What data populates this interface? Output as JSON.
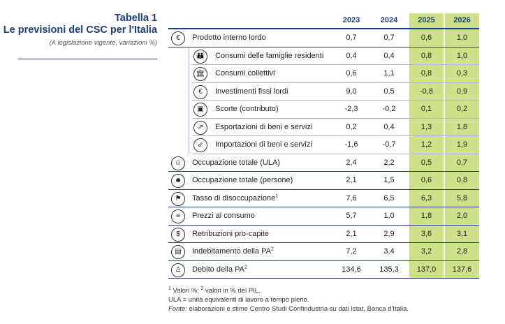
{
  "caption": {
    "title": "Tabella 1",
    "subtitle": "Le previsioni del CSC per l'Italia",
    "note": "(A legislazione vigente, variazioni %)"
  },
  "columns": [
    "2023",
    "2024",
    "2025",
    "2026"
  ],
  "colors": {
    "accent": "#1a3d7c",
    "forecast": "#cfe08a"
  },
  "rows": [
    {
      "label": "Prodotto interno lordo",
      "sup": "",
      "icon": "euro-coin-icon",
      "glyph": "€",
      "values": [
        "0,7",
        "0,7",
        "0,6",
        "1,0"
      ]
    },
    {
      "label": "Consumi delle famiglie residenti",
      "sup": "",
      "icon": "family-icon",
      "glyph": "👪",
      "values": [
        "0,4",
        "0,4",
        "0,8",
        "1,0"
      ]
    },
    {
      "label": "Consumi collettivi",
      "sup": "",
      "icon": "public-building-icon",
      "glyph": "🏛",
      "values": [
        "0,6",
        "1,1",
        "0,8",
        "0,3"
      ]
    },
    {
      "label": "Investimenti fissi lordi",
      "sup": "",
      "icon": "investment-icon",
      "glyph": "€",
      "values": [
        "9,0",
        "0,5",
        "-0,8",
        "0,9"
      ]
    },
    {
      "label": "Scorte (contributo)",
      "sup": "",
      "icon": "stock-box-icon",
      "glyph": "▣",
      "values": [
        "-2,3",
        "-0,2",
        "0,1",
        "0,2"
      ]
    },
    {
      "label": "Esportazioni di beni e servizi",
      "sup": "",
      "icon": "export-icon",
      "glyph": "⇗",
      "values": [
        "0,2",
        "0,4",
        "1,3",
        "1,8"
      ]
    },
    {
      "label": "Importazioni di beni e servizi",
      "sup": "",
      "icon": "import-icon",
      "glyph": "⇙",
      "values": [
        "-1,6",
        "-0,7",
        "1,2",
        "1,9"
      ]
    },
    {
      "label": "Occupazione totale (ULA)",
      "sup": "",
      "icon": "worker-icon",
      "glyph": "☺",
      "values": [
        "2,4",
        "2,2",
        "0,5",
        "0,7"
      ]
    },
    {
      "label": "Occupazione totale (persone)",
      "sup": "",
      "icon": "people-icon",
      "glyph": "☻",
      "values": [
        "2,1",
        "1,5",
        "0,6",
        "0,8"
      ]
    },
    {
      "label": "Tasso di disoccupazione",
      "sup": "1",
      "icon": "unemployment-icon",
      "glyph": "⚑",
      "values": [
        "7,6",
        "6,5",
        "6,3",
        "5,8"
      ]
    },
    {
      "label": "Prezzi al consumo",
      "sup": "",
      "icon": "coins-icon",
      "glyph": "≡",
      "values": [
        "5,7",
        "1,0",
        "1,8",
        "2,0"
      ]
    },
    {
      "label": "Retribuzioni pro-capite",
      "sup": "",
      "icon": "wage-icon",
      "glyph": "$",
      "values": [
        "2,1",
        "2,9",
        "3,6",
        "3,1"
      ]
    },
    {
      "label": "Indebitamento della PA",
      "sup": "2",
      "icon": "deficit-chart-icon",
      "glyph": "▤",
      "values": [
        "7,2",
        "3,4",
        "3,2",
        "2,8"
      ]
    },
    {
      "label": "Debito della PA",
      "sup": "2",
      "icon": "debt-icon",
      "glyph": "♙",
      "values": [
        "134,6",
        "135,3",
        "137,0",
        "137,6"
      ]
    }
  ],
  "notes": {
    "line1_a": "1",
    "line1_b": " Valori %; ",
    "line1_c": "2",
    "line1_d": " valori in % del PIL.",
    "line2": "ULA = unità equivalenti di lavoro a tempo pieno.",
    "line3_label": "Fonte:",
    "line3_text": " elaborazioni e stime Centro Studi Confindustria su dati Istat, Banca d'Italia."
  }
}
